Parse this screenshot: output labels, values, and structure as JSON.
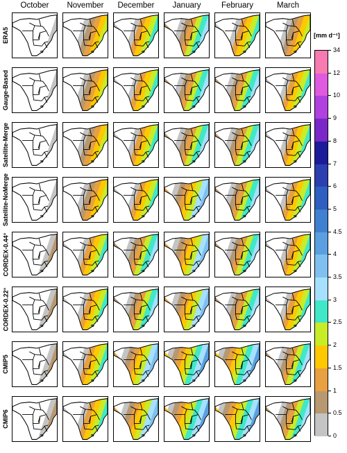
{
  "columns": [
    "October",
    "November",
    "December",
    "January",
    "February",
    "March"
  ],
  "rows": [
    "ERA5",
    "Gauge-Based",
    "Satellite-Merge",
    "Satellite-NoMerge",
    "CORDEX-0.44°",
    "CORDEX-0.22°",
    "CMIP5",
    "CMIP6"
  ],
  "colorbar": {
    "unit": "[mm d⁻¹]",
    "labels": [
      "34",
      "12",
      "10",
      "9",
      "8",
      "7",
      "6",
      "5",
      "4.5",
      "4",
      "3.5",
      "3",
      "2.5",
      "2",
      "1.5",
      "1",
      "0.5",
      "0"
    ],
    "colors": [
      "#f77ab0",
      "#e05ae0",
      "#b040e0",
      "#7a28c8",
      "#1c1c9a",
      "#2c3fb0",
      "#2f5fc0",
      "#3f80d0",
      "#5aa0e0",
      "#7fc0f0",
      "#a6e0ff",
      "#40e8c8",
      "#c8ec28",
      "#ffc800",
      "#e8a040",
      "#b89870",
      "#c4c4c4",
      "#ffffff"
    ]
  },
  "icons": {
    "panel": "africa-map-icon"
  },
  "panel_levels": [
    [
      1,
      3,
      4,
      5,
      4,
      3
    ],
    [
      1,
      3,
      4,
      5,
      5,
      4
    ],
    [
      1,
      3,
      4,
      5,
      5,
      4
    ],
    [
      1,
      3,
      4,
      6,
      5,
      4
    ],
    [
      2,
      4,
      5,
      6,
      5,
      4
    ],
    [
      2,
      4,
      5,
      6,
      5,
      4
    ],
    [
      2,
      4,
      6,
      7,
      7,
      5
    ],
    [
      2,
      4,
      6,
      7,
      7,
      5
    ]
  ]
}
